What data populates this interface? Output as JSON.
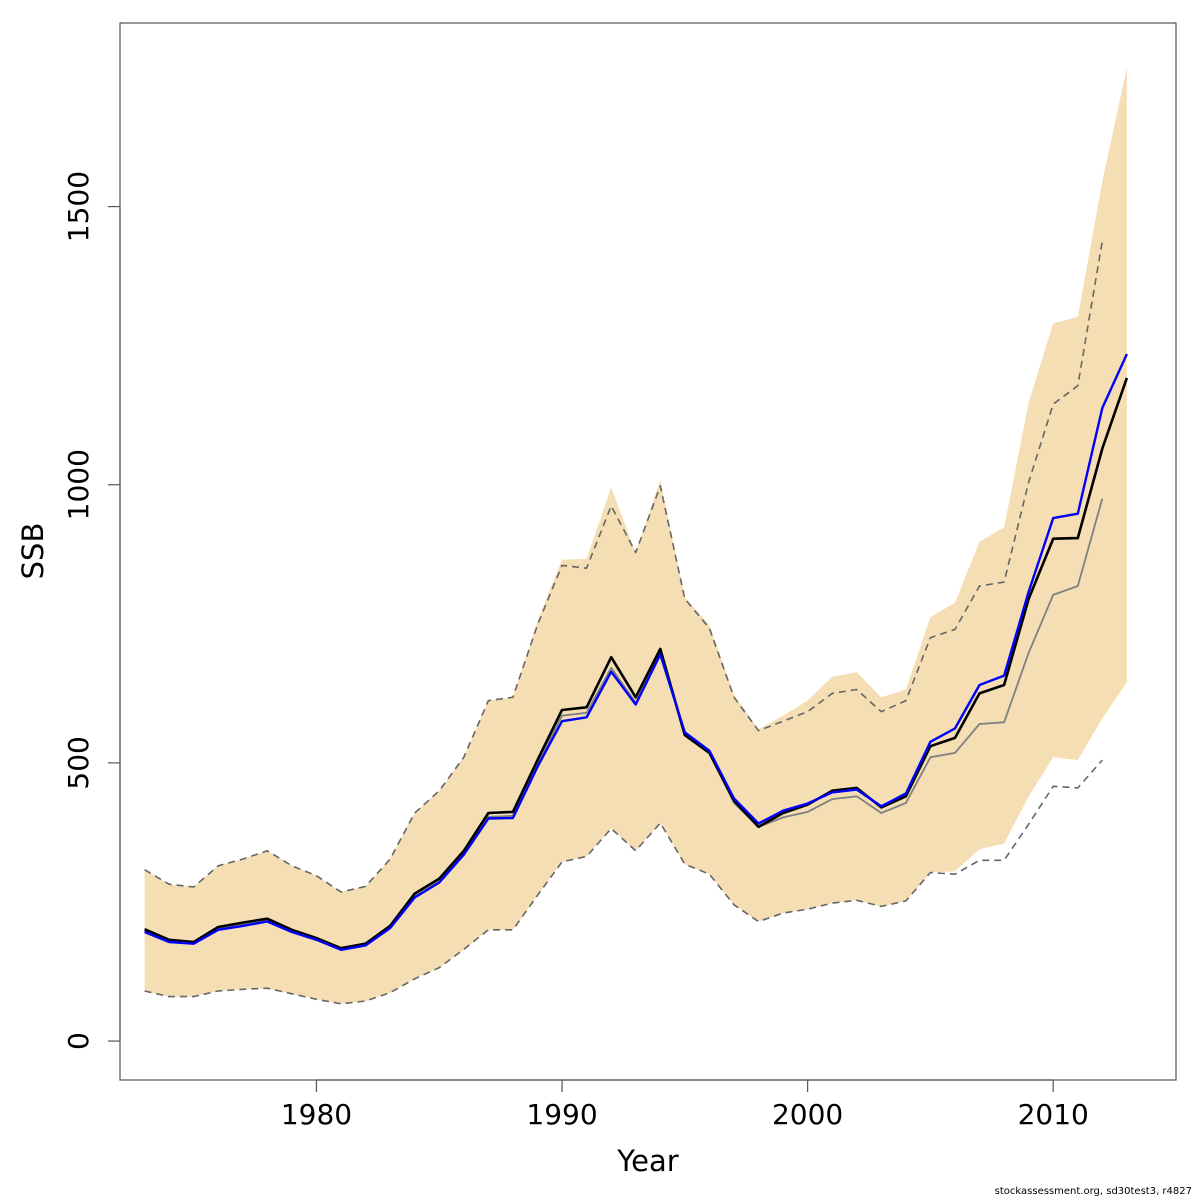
{
  "chart_data": {
    "type": "line",
    "xlabel": "Year",
    "ylabel": "SSB",
    "xlim": [
      1972,
      2015
    ],
    "ylim": [
      -70,
      1830
    ],
    "x_ticks": [
      1980,
      1990,
      2000,
      2010
    ],
    "y_ticks": [
      0,
      500,
      1000,
      1500
    ],
    "grid": false,
    "colors": {
      "band": "#f5deb3",
      "main": "#000000",
      "blue": "#0000ff",
      "gray": "#808080",
      "dashed": "#666666"
    },
    "band_x": [
      1973,
      1974,
      1975,
      1976,
      1977,
      1978,
      1979,
      1980,
      1981,
      1982,
      1983,
      1984,
      1985,
      1986,
      1987,
      1988,
      1989,
      1990,
      1991,
      1992,
      1993,
      1994,
      1995,
      1996,
      1997,
      1998,
      1999,
      2000,
      2001,
      2002,
      2003,
      2004,
      2005,
      2006,
      2007,
      2008,
      2009,
      2010,
      2011,
      2012,
      2013
    ],
    "band_lower": [
      90,
      80,
      80,
      90,
      93,
      95,
      85,
      75,
      67,
      72,
      87,
      112,
      132,
      165,
      200,
      200,
      262,
      322,
      332,
      382,
      342,
      392,
      318,
      300,
      245,
      215,
      230,
      237,
      248,
      253,
      242,
      252,
      303,
      305,
      345,
      355,
      440,
      510,
      505,
      580,
      645
    ],
    "band_upper": [
      308,
      282,
      277,
      315,
      327,
      342,
      315,
      297,
      268,
      278,
      327,
      410,
      450,
      510,
      612,
      618,
      755,
      865,
      867,
      995,
      878,
      1008,
      798,
      748,
      622,
      560,
      585,
      612,
      655,
      663,
      618,
      632,
      762,
      788,
      898,
      923,
      1148,
      1290,
      1302,
      1545,
      1750
    ],
    "series": [
      {
        "name": "",
        "style": "solid-black",
        "x": [
          1973,
          1974,
          1975,
          1976,
          1977,
          1978,
          1979,
          1980,
          1981,
          1982,
          1983,
          1984,
          1985,
          1986,
          1987,
          1988,
          1989,
          1990,
          1991,
          1992,
          1993,
          1994,
          1995,
          1996,
          1997,
          1998,
          1999,
          2000,
          2001,
          2002,
          2003,
          2004,
          2005,
          2006,
          2007,
          2008,
          2009,
          2010,
          2011,
          2012,
          2013
        ],
        "values": [
          201,
          182,
          178,
          205,
          213,
          220,
          200,
          185,
          167,
          175,
          207,
          265,
          292,
          342,
          410,
          412,
          505,
          595,
          600,
          690,
          618,
          705,
          550,
          518,
          432,
          385,
          410,
          425,
          450,
          455,
          420,
          440,
          530,
          545,
          625,
          640,
          795,
          903,
          904,
          1065,
          1192
        ]
      },
      {
        "name": "",
        "style": "solid-blue",
        "x": [
          1973,
          1974,
          1975,
          1976,
          1977,
          1978,
          1979,
          1980,
          1981,
          1982,
          1983,
          1984,
          1985,
          1986,
          1987,
          1988,
          1989,
          1990,
          1991,
          1992,
          1993,
          1994,
          1995,
          1996,
          1997,
          1998,
          1999,
          2000,
          2001,
          2002,
          2003,
          2004,
          2005,
          2006,
          2007,
          2008,
          2009,
          2010,
          2011,
          2012,
          2013
        ],
        "values": [
          196,
          178,
          175,
          200,
          207,
          215,
          196,
          182,
          164,
          172,
          203,
          258,
          285,
          335,
          400,
          401,
          493,
          575,
          582,
          664,
          605,
          695,
          555,
          522,
          436,
          391,
          414,
          427,
          447,
          452,
          422,
          445,
          538,
          562,
          640,
          657,
          808,
          940,
          948,
          1138,
          1235
        ]
      },
      {
        "name": "",
        "style": "solid-gray",
        "x": [
          1973,
          1974,
          1975,
          1976,
          1977,
          1978,
          1979,
          1980,
          1981,
          1982,
          1983,
          1984,
          1985,
          1986,
          1987,
          1988,
          1989,
          1990,
          1991,
          1992,
          1993,
          1994,
          1995,
          1996,
          1997,
          1998,
          1999,
          2000,
          2001,
          2002,
          2003,
          2004,
          2005,
          2006,
          2007,
          2008,
          2009,
          2010,
          2011,
          2012
        ],
        "values": [
          198,
          180,
          176,
          202,
          209,
          216,
          198,
          183,
          165,
          173,
          204,
          260,
          287,
          337,
          403,
          405,
          497,
          585,
          590,
          671,
          608,
          698,
          552,
          518,
          428,
          385,
          402,
          412,
          435,
          440,
          410,
          428,
          510,
          518,
          570,
          573,
          698,
          802,
          818,
          975
        ]
      },
      {
        "name": "",
        "style": "dashed-upper",
        "x": [
          1973,
          1974,
          1975,
          1976,
          1977,
          1978,
          1979,
          1980,
          1981,
          1982,
          1983,
          1984,
          1985,
          1986,
          1987,
          1988,
          1989,
          1990,
          1991,
          1992,
          1993,
          1994,
          1995,
          1996,
          1997,
          1998,
          1999,
          2000,
          2001,
          2002,
          2003,
          2004,
          2005,
          2006,
          2007,
          2008,
          2009,
          2010,
          2011,
          2012
        ],
        "values": [
          308,
          282,
          277,
          315,
          327,
          342,
          315,
          297,
          268,
          278,
          327,
          410,
          450,
          510,
          612,
          618,
          748,
          855,
          850,
          962,
          878,
          998,
          795,
          742,
          618,
          558,
          575,
          592,
          625,
          632,
          592,
          612,
          725,
          740,
          818,
          825,
          1005,
          1145,
          1178,
          1438
        ]
      },
      {
        "name": "",
        "style": "dashed-lower",
        "x": [
          1973,
          1974,
          1975,
          1976,
          1977,
          1978,
          1979,
          1980,
          1981,
          1982,
          1983,
          1984,
          1985,
          1986,
          1987,
          1988,
          1989,
          1990,
          1991,
          1992,
          1993,
          1994,
          1995,
          1996,
          1997,
          1998,
          1999,
          2000,
          2001,
          2002,
          2003,
          2004,
          2005,
          2006,
          2007,
          2008,
          2009,
          2010,
          2011,
          2012
        ],
        "values": [
          90,
          80,
          80,
          90,
          93,
          95,
          85,
          75,
          67,
          72,
          87,
          112,
          132,
          165,
          200,
          200,
          262,
          322,
          332,
          382,
          342,
          392,
          318,
          300,
          245,
          215,
          230,
          237,
          248,
          253,
          242,
          252,
          303,
          300,
          325,
          325,
          390,
          458,
          455,
          505
        ]
      }
    ]
  },
  "footer": {
    "credit": "stockassessment.org, sd30test3, r4827"
  }
}
